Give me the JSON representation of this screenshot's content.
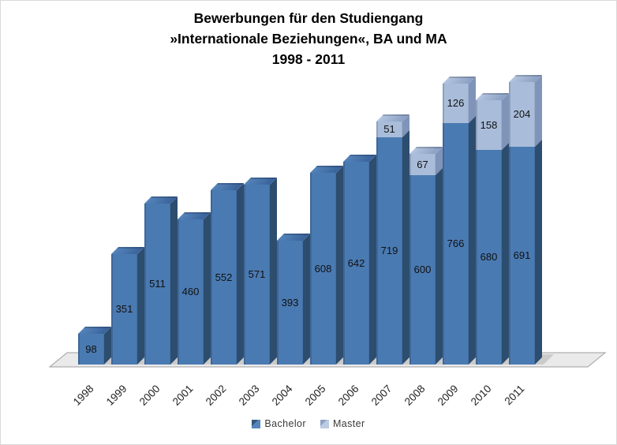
{
  "frame": {
    "background": "#ffffff",
    "border_color": "#d9d9d9"
  },
  "title": {
    "line1": "Bewerbungen für den Studiengang",
    "line2": "»Internationale Beziehungen«, BA und MA",
    "line3": "1998 - 2011"
  },
  "legend": {
    "position": "bottom-center",
    "items": [
      {
        "label": "Bachelor",
        "color": "#4a7ab2"
      },
      {
        "label": "Master",
        "color": "#a9bdda"
      }
    ]
  },
  "chart_data": {
    "type": "bar",
    "stacked": true,
    "effect": "3d",
    "grid": false,
    "y_axis_visible": false,
    "title": "Bewerbungen für den Studiengang »Internationale Beziehungen«, BA und MA 1998 - 2011",
    "xlabel": "",
    "ylabel": "",
    "legend_position": "bottom",
    "categories": [
      "1998",
      "1999",
      "2000",
      "2001",
      "2002",
      "2003",
      "2004",
      "2005",
      "2006",
      "2007",
      "2008",
      "2009",
      "2010",
      "2011"
    ],
    "series": [
      {
        "name": "Bachelor",
        "color": "#4a7ab2",
        "side_color": "#2d4d6f",
        "values": [
          98,
          351,
          511,
          460,
          552,
          571,
          393,
          608,
          642,
          719,
          600,
          766,
          680,
          691
        ]
      },
      {
        "name": "Master",
        "color": "#a9bdda",
        "side_color": "#8094b9",
        "values": [
          0,
          0,
          0,
          0,
          0,
          0,
          0,
          0,
          0,
          51,
          67,
          126,
          158,
          204
        ]
      }
    ],
    "data_labels": "value centered inside each segment, zero values hidden"
  }
}
